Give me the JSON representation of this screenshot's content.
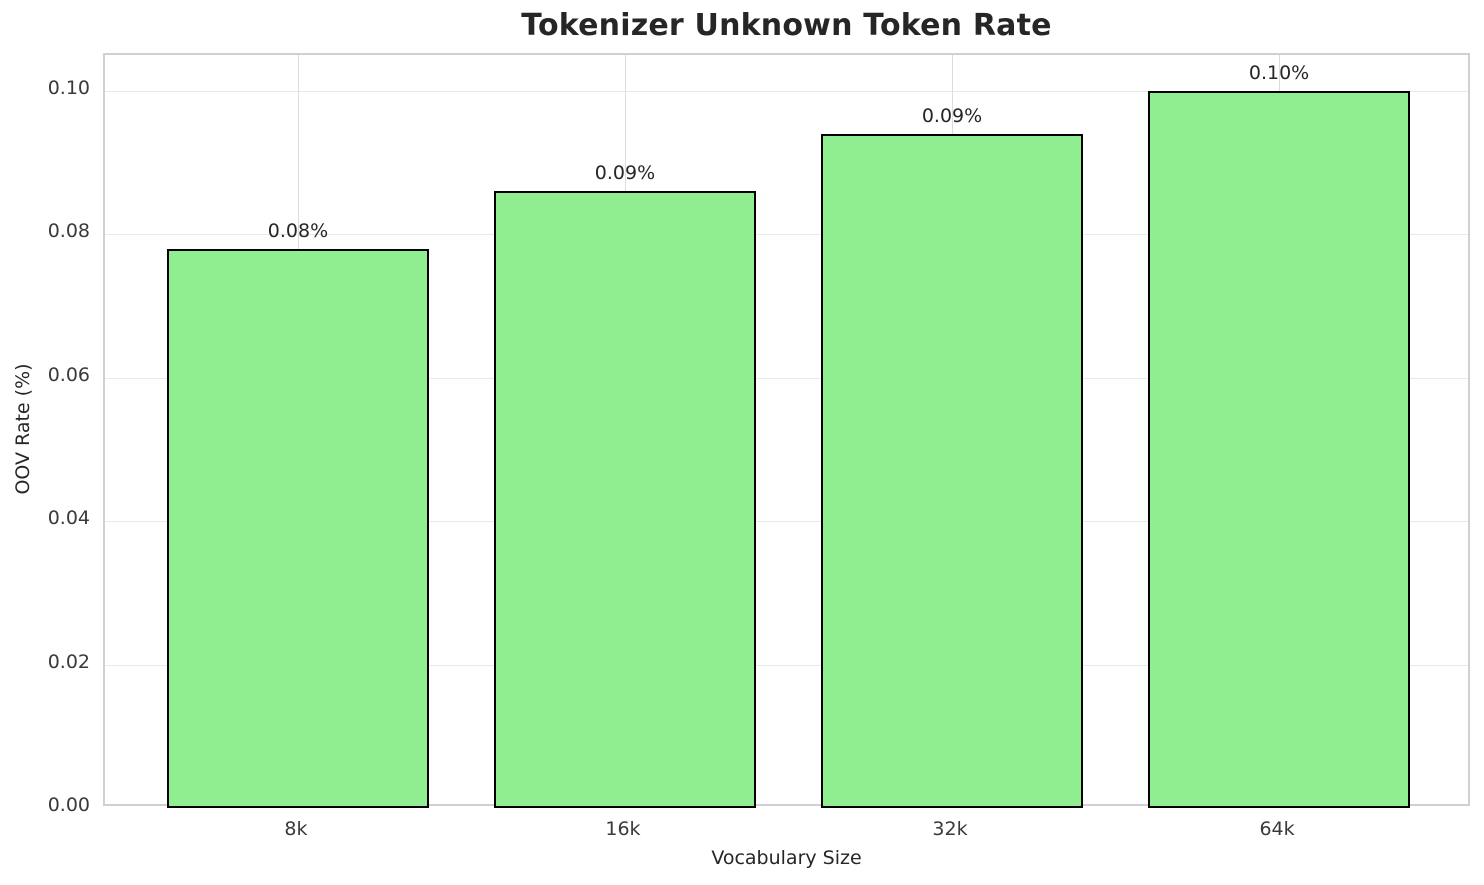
{
  "chart_data": {
    "type": "bar",
    "title": "Tokenizer Unknown Token Rate",
    "xlabel": "Vocabulary Size",
    "ylabel": "OOV Rate (%)",
    "categories": [
      "8k",
      "16k",
      "32k",
      "64k"
    ],
    "values": [
      0.078,
      0.086,
      0.094,
      0.1
    ],
    "bar_labels": [
      "0.08%",
      "0.09%",
      "0.09%",
      "0.10%"
    ],
    "ylim": [
      0,
      0.105
    ],
    "xlim": [
      -0.59,
      3.59
    ],
    "bar_width": 0.8,
    "yticks": [
      0,
      0.02,
      0.04,
      0.06,
      0.08,
      0.1
    ],
    "ytick_labels": [
      "0.00",
      "0.02",
      "0.04",
      "0.06",
      "0.08",
      "0.10"
    ],
    "grid": true,
    "legend": "none",
    "bar_color": "#90EE90",
    "bar_edge_color": "#000000",
    "grid_color": "#e3e3e3",
    "spine_color": "#d0d0d0",
    "text_color": "#262626"
  }
}
